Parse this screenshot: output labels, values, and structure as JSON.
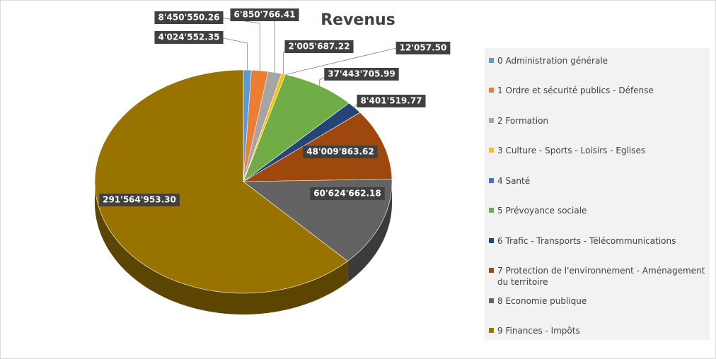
{
  "chart_data": {
    "type": "pie",
    "title": "Revenus",
    "categories": [
      "0 Administration générale",
      "1 Ordre et sécurité publics - Défense",
      "2 Formation",
      "3 Culture - Sports - Loisirs - Eglises",
      "4 Santé",
      "5 Prévoyance sociale",
      "6 Trafic - Transports - Télécommunications",
      "7 Protection de l'environnement - Aménagement du territoire",
      "8 Economie publique",
      "9 Finances - Impôts"
    ],
    "values": [
      4024552.35,
      8450550.26,
      6850766.41,
      2005687.22,
      12057.5,
      37443705.99,
      8401519.77,
      48009863.62,
      60624662.18,
      291564953.3
    ],
    "value_labels": [
      "4'024'552.35",
      "8'450'550.26",
      "6'850'766.41",
      "2'005'687.22",
      "12'057.50",
      "37'443'705.99",
      "8'401'519.77",
      "48'009'863.62",
      "60'624'662.18",
      "291'564'953.30"
    ],
    "colors": [
      "#5b9bd5",
      "#ed7d31",
      "#a5a5a5",
      "#ffc000",
      "#4472c4",
      "#70ad47",
      "#264478",
      "#9e480e",
      "#636363",
      "#997300"
    ],
    "legend": "right"
  }
}
